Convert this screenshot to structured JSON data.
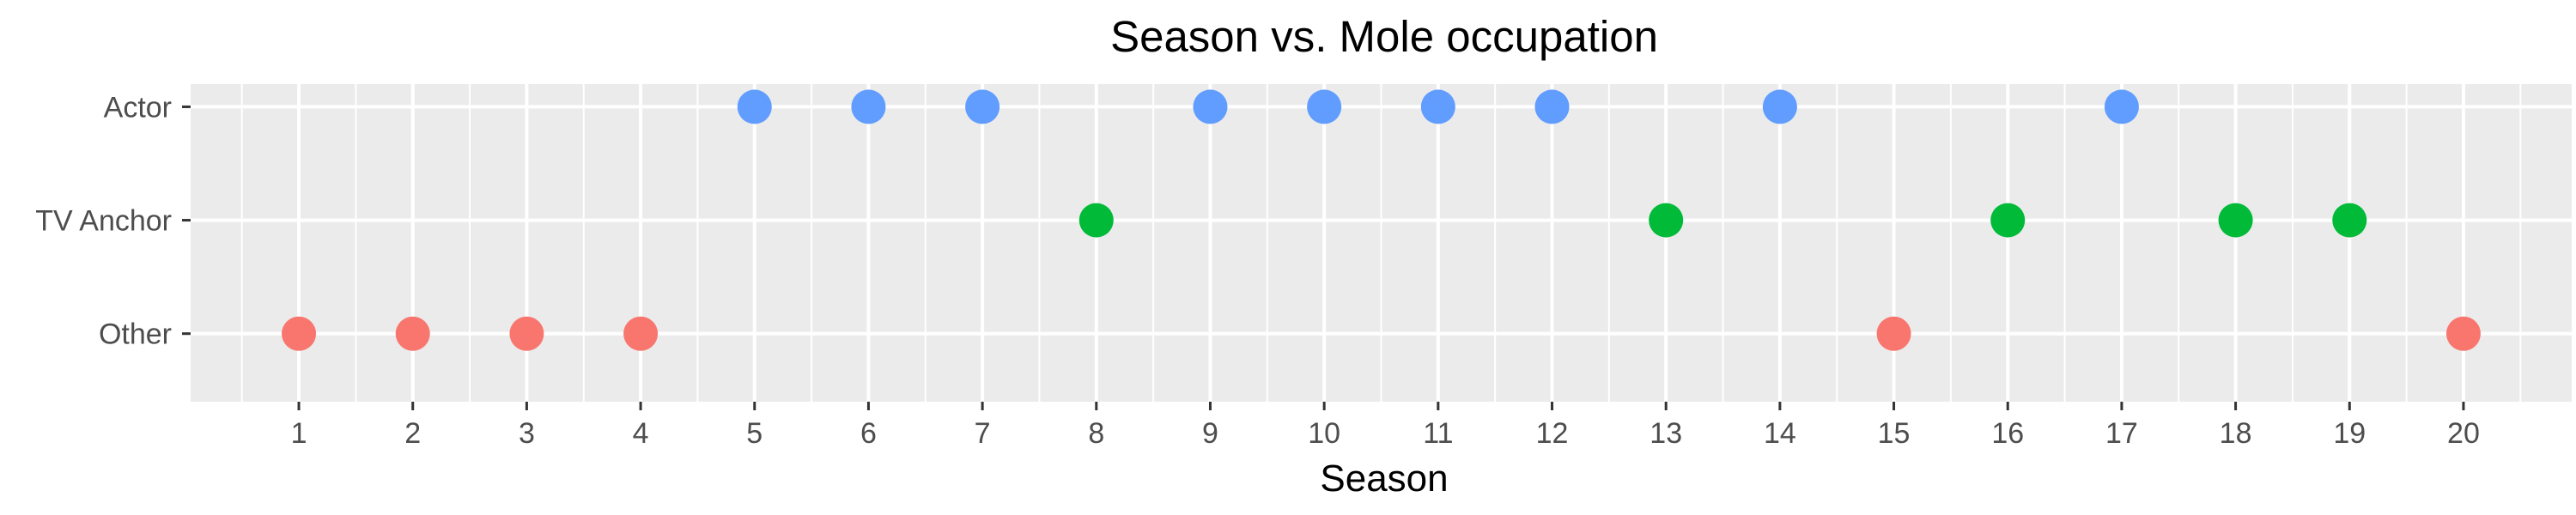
{
  "chart_data": {
    "type": "scatter",
    "title": "Season vs. Mole occupation",
    "xlabel": "Season",
    "ylabel": "",
    "x_ticks": [
      1,
      2,
      3,
      4,
      5,
      6,
      7,
      8,
      9,
      10,
      11,
      12,
      13,
      14,
      15,
      16,
      17,
      18,
      19,
      20
    ],
    "xlim": [
      0.05,
      20.95
    ],
    "y_categories": [
      "Other",
      "TV Anchor",
      "Actor"
    ],
    "grid": true,
    "legend": "none",
    "colors": {
      "Other": "#F8766D",
      "TV Anchor": "#00BA38",
      "Actor": "#619CFF",
      "panel": "#EBEBEB",
      "gridline": "#FFFFFF"
    },
    "points": [
      {
        "x": 1,
        "y": "Other"
      },
      {
        "x": 2,
        "y": "Other"
      },
      {
        "x": 3,
        "y": "Other"
      },
      {
        "x": 4,
        "y": "Other"
      },
      {
        "x": 5,
        "y": "Actor"
      },
      {
        "x": 6,
        "y": "Actor"
      },
      {
        "x": 7,
        "y": "Actor"
      },
      {
        "x": 8,
        "y": "TV Anchor"
      },
      {
        "x": 9,
        "y": "Actor"
      },
      {
        "x": 10,
        "y": "Actor"
      },
      {
        "x": 11,
        "y": "Actor"
      },
      {
        "x": 12,
        "y": "Actor"
      },
      {
        "x": 13,
        "y": "TV Anchor"
      },
      {
        "x": 14,
        "y": "Actor"
      },
      {
        "x": 15,
        "y": "Other"
      },
      {
        "x": 16,
        "y": "TV Anchor"
      },
      {
        "x": 17,
        "y": "Actor"
      },
      {
        "x": 18,
        "y": "TV Anchor"
      },
      {
        "x": 19,
        "y": "TV Anchor"
      },
      {
        "x": 20,
        "y": "Other"
      }
    ]
  }
}
